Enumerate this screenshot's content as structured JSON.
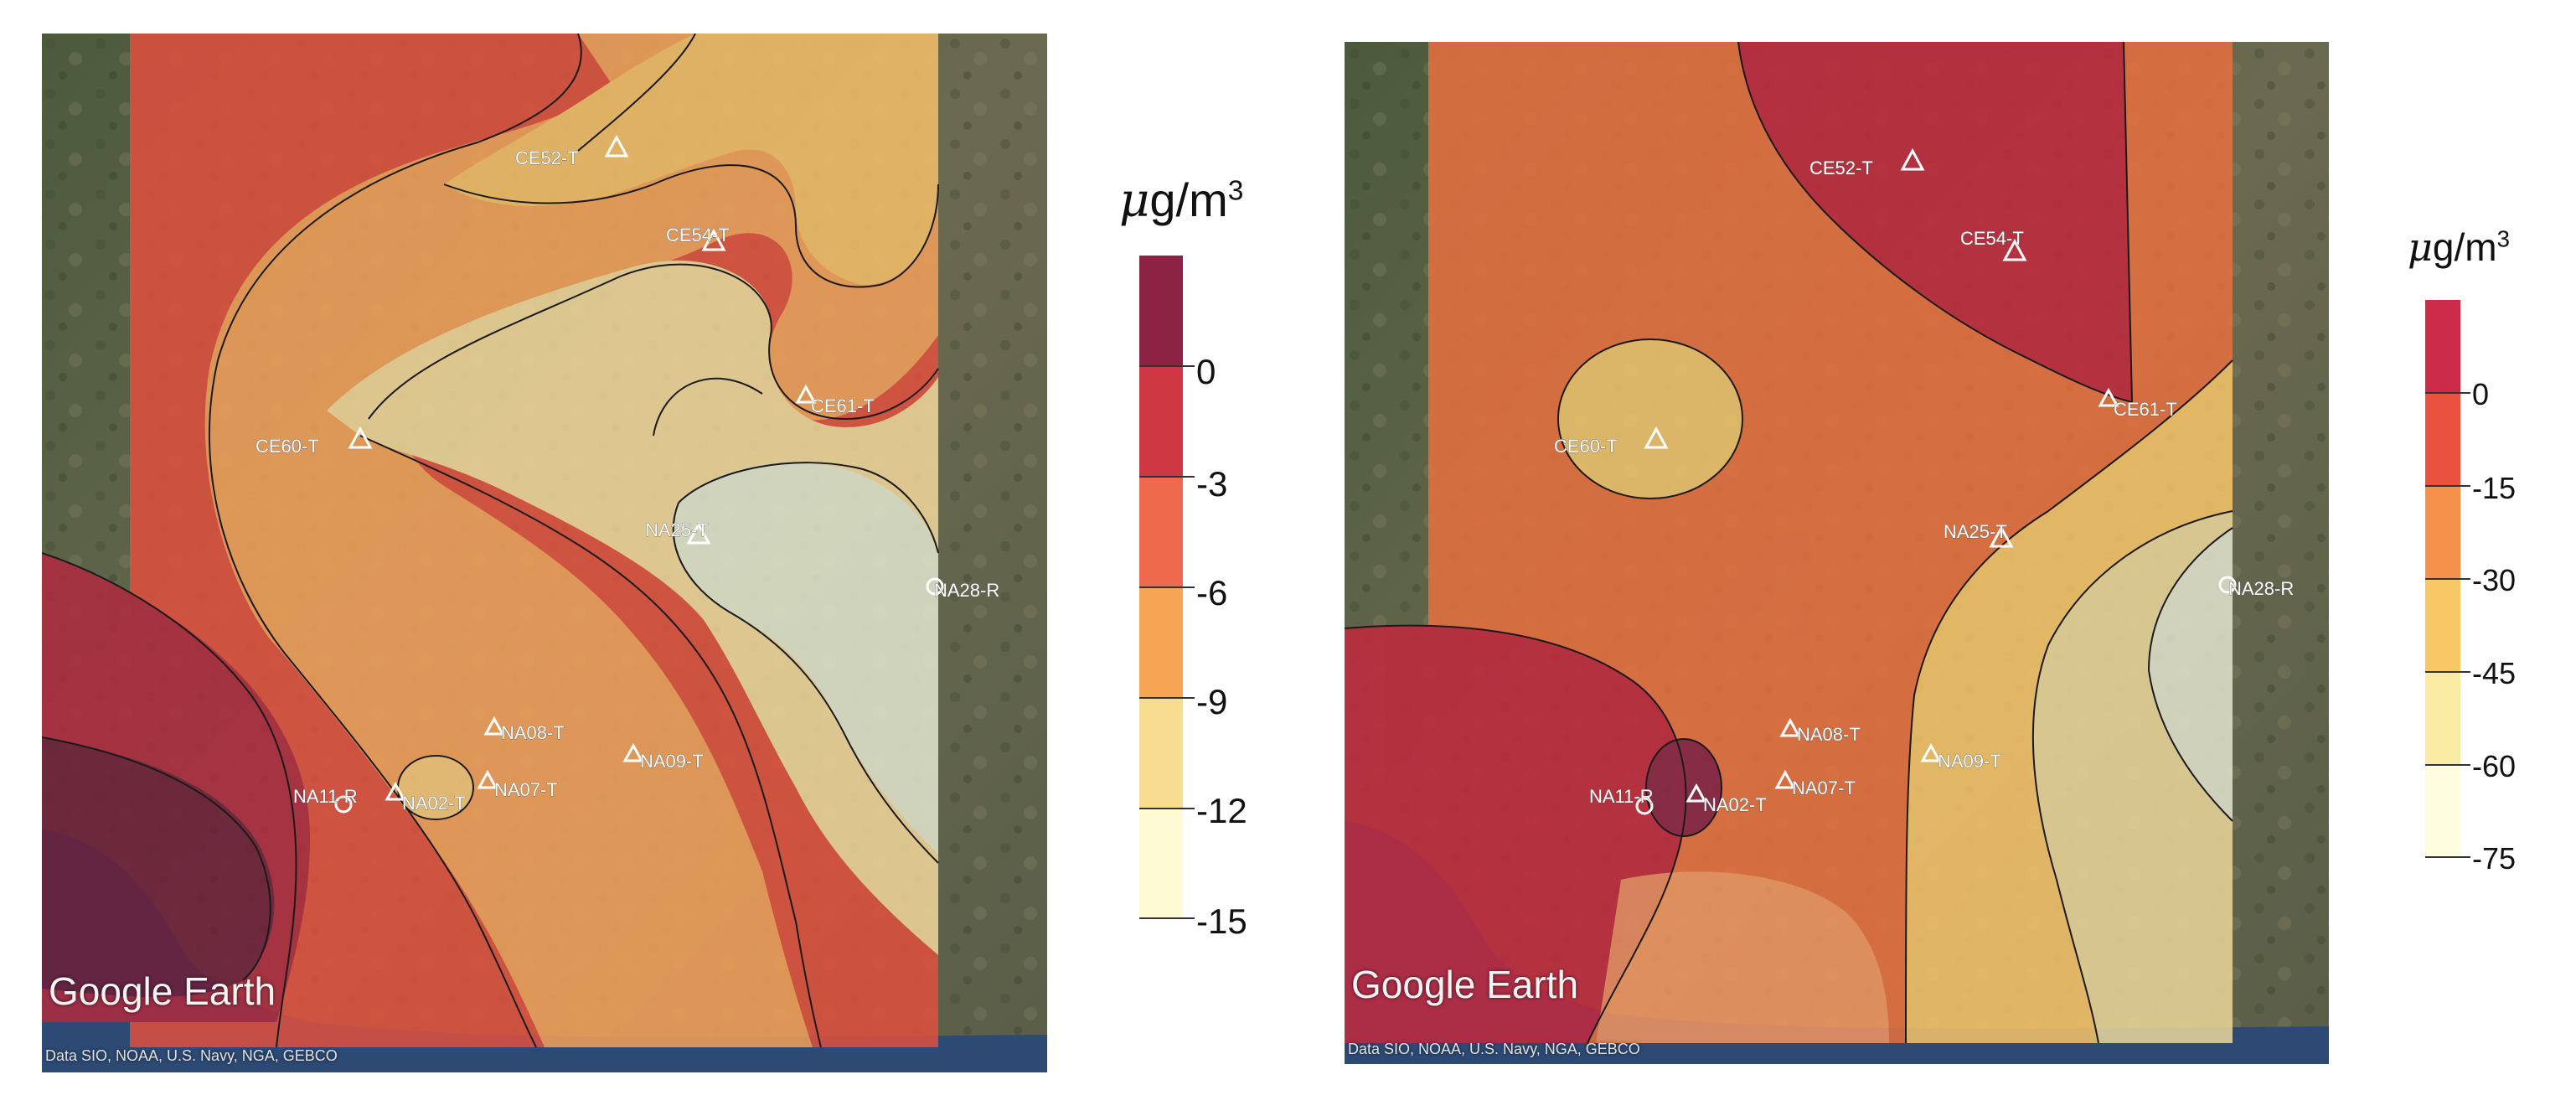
{
  "maps": [
    {
      "id": "left",
      "watermark": "Google Earth",
      "attribution": "Data SIO, NOAA, U.S. Navy, NGA, GEBCO",
      "legend": {
        "unit_prefix": "μ",
        "unit_main": "g/m",
        "unit_sup": "3",
        "colors": [
          "#8c2244",
          "#cf3742",
          "#ef6a4c",
          "#f6a554",
          "#f8dc90",
          "#fefbd4"
        ],
        "ticks": [
          "0",
          "-3",
          "-6",
          "-9",
          "-12",
          "-15"
        ]
      },
      "stations": [
        "CE52-T",
        "CE54-T",
        "CE61-T",
        "CE60-T",
        "NA25-T",
        "NA28-R",
        "NA08-T",
        "NA09-T",
        "NA11-R",
        "NA02-T",
        "NA07-T"
      ]
    },
    {
      "id": "right",
      "watermark": "Google Earth",
      "attribution": "Data SIO, NOAA, U.S. Navy, NGA, GEBCO",
      "legend": {
        "unit_prefix": "μ",
        "unit_main": "g/m",
        "unit_sup": "3",
        "colors": [
          "#cc2c48",
          "#e8523f",
          "#f5914a",
          "#f8c867",
          "#fbeca3",
          "#fefde0"
        ],
        "ticks": [
          "0",
          "-15",
          "-30",
          "-45",
          "-60",
          "-75"
        ]
      },
      "stations": [
        "CE52-T",
        "CE54-T",
        "CE61-T",
        "CE60-T",
        "NA25-T",
        "NA28-R",
        "NA08-T",
        "NA09-T",
        "NA11-R",
        "NA02-T",
        "NA07-T"
      ]
    }
  ]
}
